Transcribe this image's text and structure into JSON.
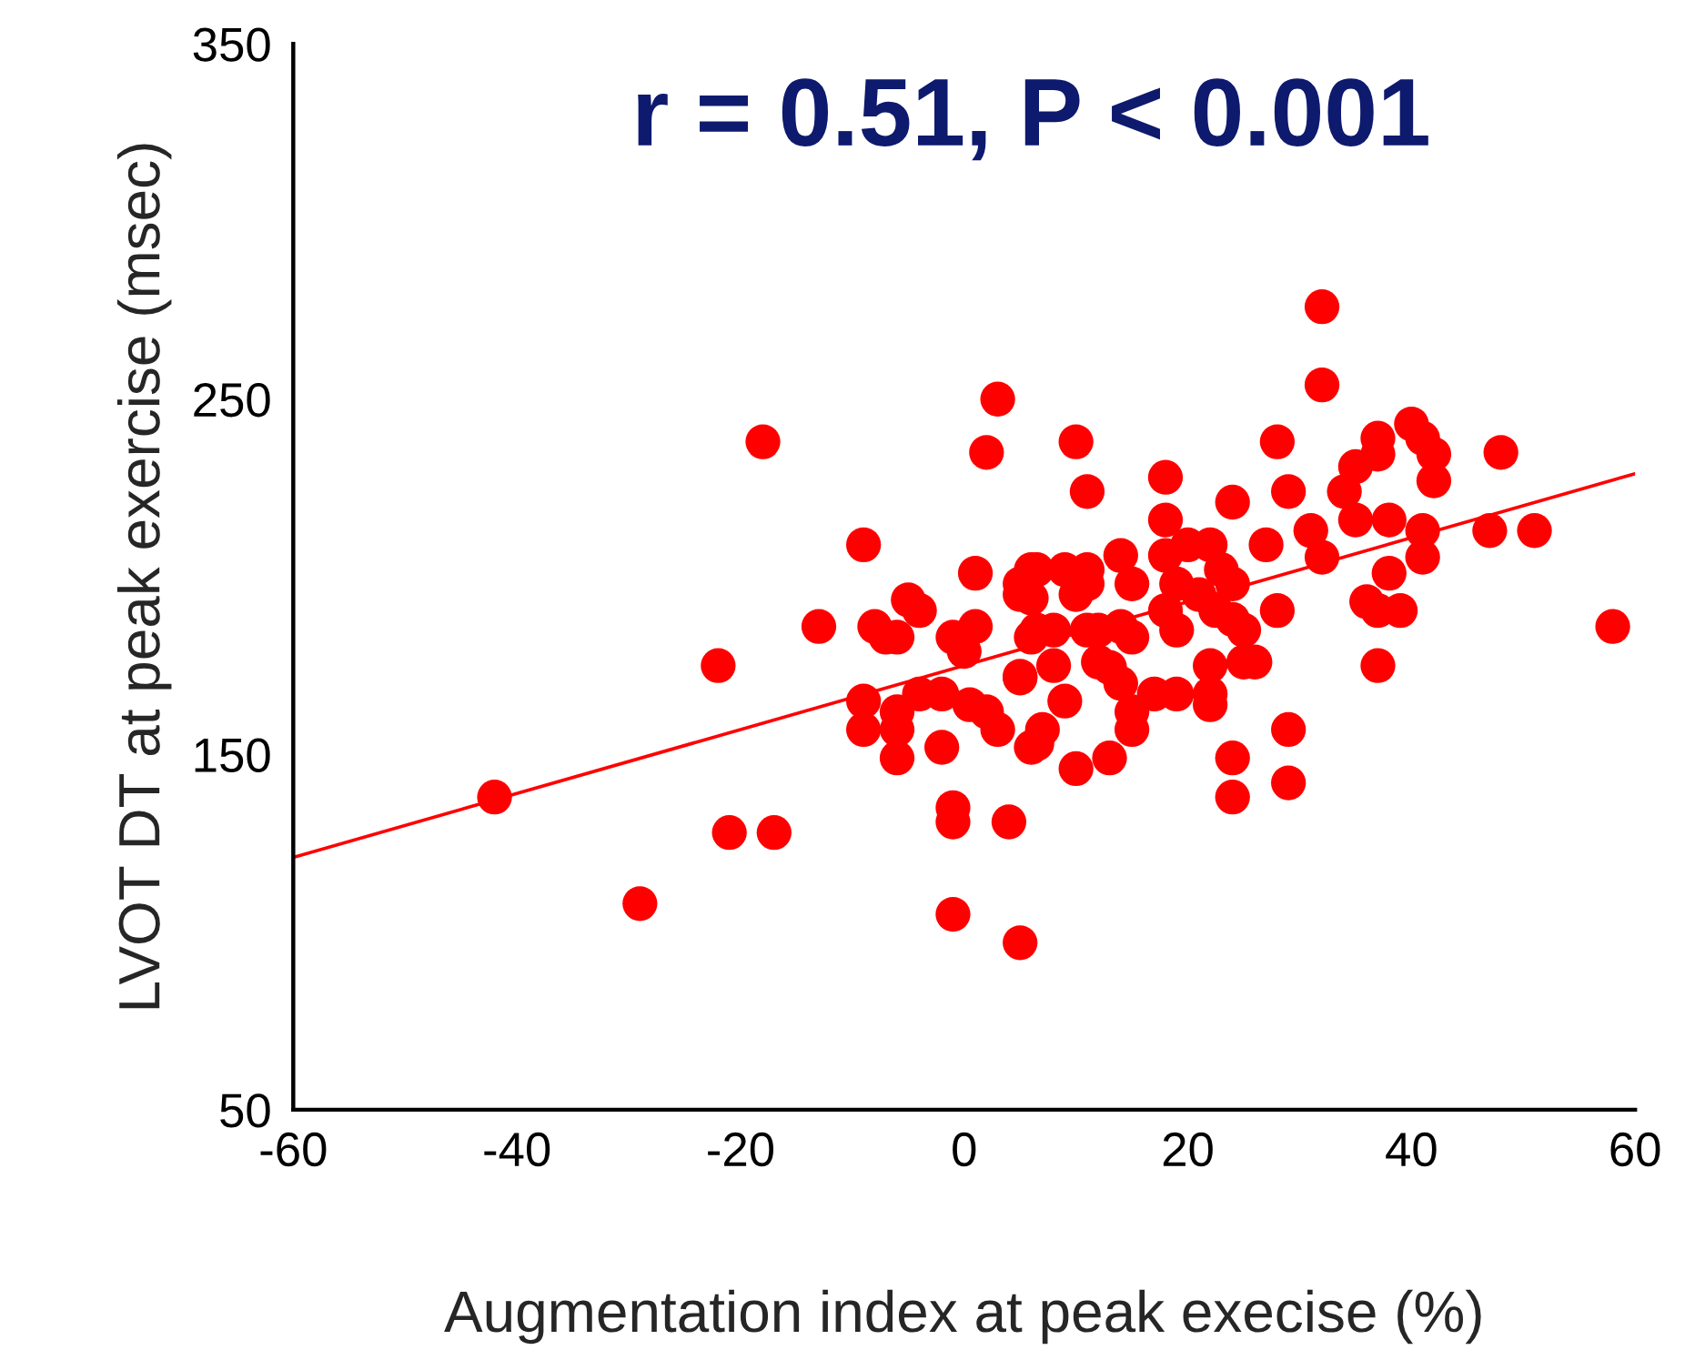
{
  "chart_data": {
    "type": "scatter",
    "title": "r = 0.51, P < 0.001",
    "xlabel": "Augmentation index at peak execise (%)",
    "ylabel": "LVOT DT at peak exercise (msec)",
    "xlim": [
      -60,
      60
    ],
    "xticks": [
      -60,
      -40,
      -20,
      0,
      20,
      40,
      60
    ],
    "ylim": [
      50,
      350
    ],
    "yticks": [
      50,
      150,
      250,
      350
    ],
    "grid": false,
    "series": [
      {
        "color": "#ff0000",
        "marker": "circle",
        "x": [
          -42,
          -29,
          -22,
          -21,
          -17,
          -18,
          -13,
          -9,
          -9,
          -9,
          -8,
          -7,
          -6,
          -5,
          -4,
          -6,
          -6,
          -6,
          -4,
          -2,
          -2,
          -1,
          -1,
          4,
          -1,
          5,
          3,
          2,
          1,
          -1,
          0,
          1,
          0.5,
          2,
          3,
          5,
          5,
          6,
          6,
          6,
          6,
          32,
          32,
          10,
          11,
          18,
          18,
          24,
          28,
          29,
          40,
          41,
          42,
          42,
          37,
          37,
          35,
          34,
          35,
          38,
          41,
          41,
          47,
          48,
          51,
          58,
          38,
          36,
          37,
          39,
          37,
          28,
          31,
          32,
          27,
          24,
          23,
          22,
          18,
          20,
          19,
          21,
          18,
          19,
          22.5,
          24,
          25,
          25,
          26,
          22,
          22,
          22,
          29,
          29,
          24,
          24,
          14,
          15,
          11,
          10,
          6.5,
          9,
          11,
          5,
          6.5,
          8,
          11,
          12,
          14,
          15,
          8,
          5,
          12,
          13,
          14,
          17,
          19,
          15,
          15,
          9,
          7,
          6.5,
          10,
          13
        ],
        "values": [
          138,
          108,
          175,
          128,
          128,
          238,
          186,
          209,
          165,
          157,
          186,
          183,
          183,
          193.5,
          190.5,
          162,
          157,
          149,
          167,
          167,
          152,
          135,
          131,
          131,
          105,
          97,
          250,
          235,
          201,
          183,
          179,
          186,
          164,
          162,
          157,
          171.5,
          198,
          194,
          202,
          183,
          152,
          276,
          254,
          238,
          224,
          228,
          216,
          221,
          238,
          224,
          243,
          239,
          234.5,
          227,
          239,
          234.5,
          231,
          224,
          216,
          216,
          213,
          205.5,
          213,
          235,
          213,
          186,
          201,
          193,
          190.5,
          190.5,
          175,
          190.5,
          213,
          205.5,
          209,
          198,
          202,
          209,
          206,
          209,
          198,
          195,
          190.5,
          185,
          190.5,
          188,
          185,
          176,
          176,
          175,
          167,
          164,
          157,
          142,
          149,
          138,
          206,
          198,
          198,
          195,
          202,
          202,
          202,
          195,
          185,
          185,
          185,
          185,
          186,
          183,
          175,
          172,
          176,
          174.5,
          170,
          167,
          167,
          162,
          157,
          165,
          157,
          153,
          146,
          149
        ]
      },
      {
        "type": "line",
        "marker": "none",
        "color": "#ff0000",
        "x": [
          -60,
          60
        ],
        "values": [
          121,
          229
        ]
      }
    ]
  }
}
